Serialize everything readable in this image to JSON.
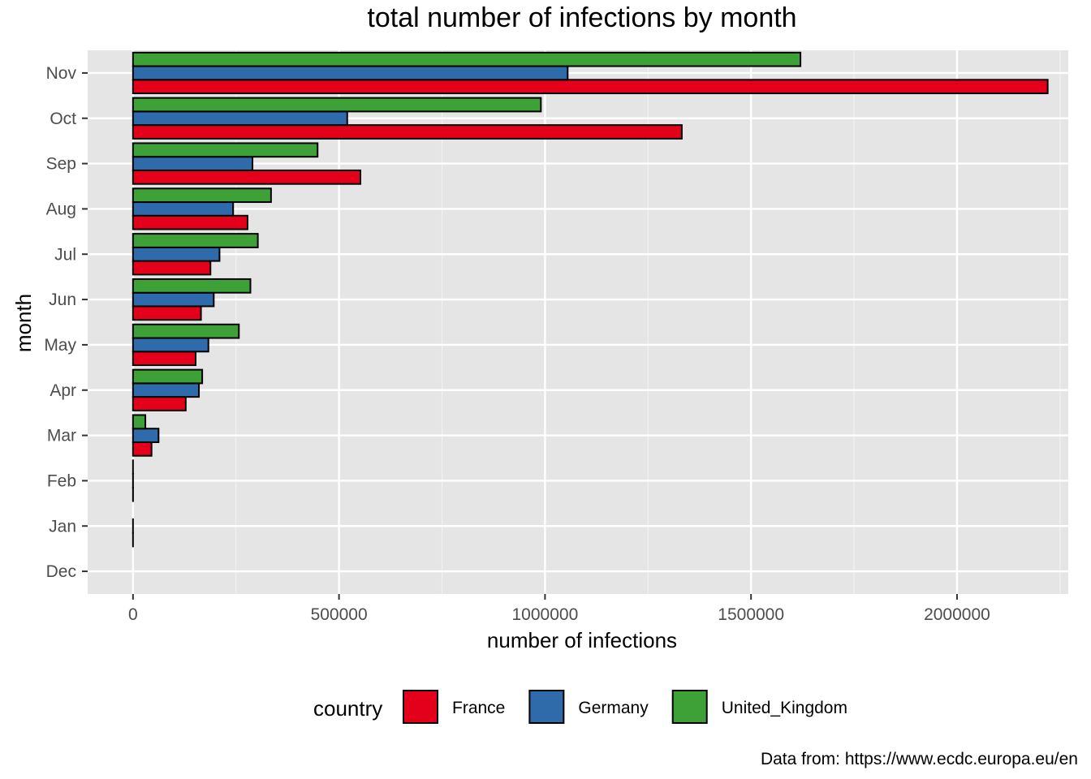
{
  "chart_data": {
    "type": "bar",
    "orientation": "horizontal",
    "title": "total number of infections by month",
    "xlabel": "number of infections",
    "ylabel": "month",
    "caption": "Data from: https://www.ecdc.europa.eu/en",
    "xlim": [
      -110000,
      2270000
    ],
    "x_ticks": [
      0,
      500000,
      1000000,
      1500000,
      2000000
    ],
    "x_tick_labels": [
      "0",
      "500000",
      "1000000",
      "1500000",
      "2000000"
    ],
    "grid": true,
    "legend": {
      "title": "country",
      "position": "bottom"
    },
    "categories": [
      "Dec",
      "Jan",
      "Feb",
      "Mar",
      "Apr",
      "May",
      "Jun",
      "Jul",
      "Aug",
      "Sep",
      "Oct",
      "Nov"
    ],
    "series": [
      {
        "name": "France",
        "color": "#e4001b",
        "values": [
          0,
          5,
          120,
          45000,
          128000,
          152000,
          165000,
          188000,
          278000,
          552000,
          1332000,
          2220000
        ]
      },
      {
        "name": "Germany",
        "color": "#2f6aab",
        "values": [
          0,
          5,
          100,
          62000,
          160000,
          183000,
          196000,
          210000,
          243000,
          290000,
          520000,
          1055000
        ]
      },
      {
        "name": "United_Kingdom",
        "color": "#3ea138",
        "values": [
          0,
          0,
          20,
          30000,
          168000,
          257000,
          285000,
          303000,
          335000,
          448000,
          990000,
          1620000
        ]
      }
    ]
  }
}
